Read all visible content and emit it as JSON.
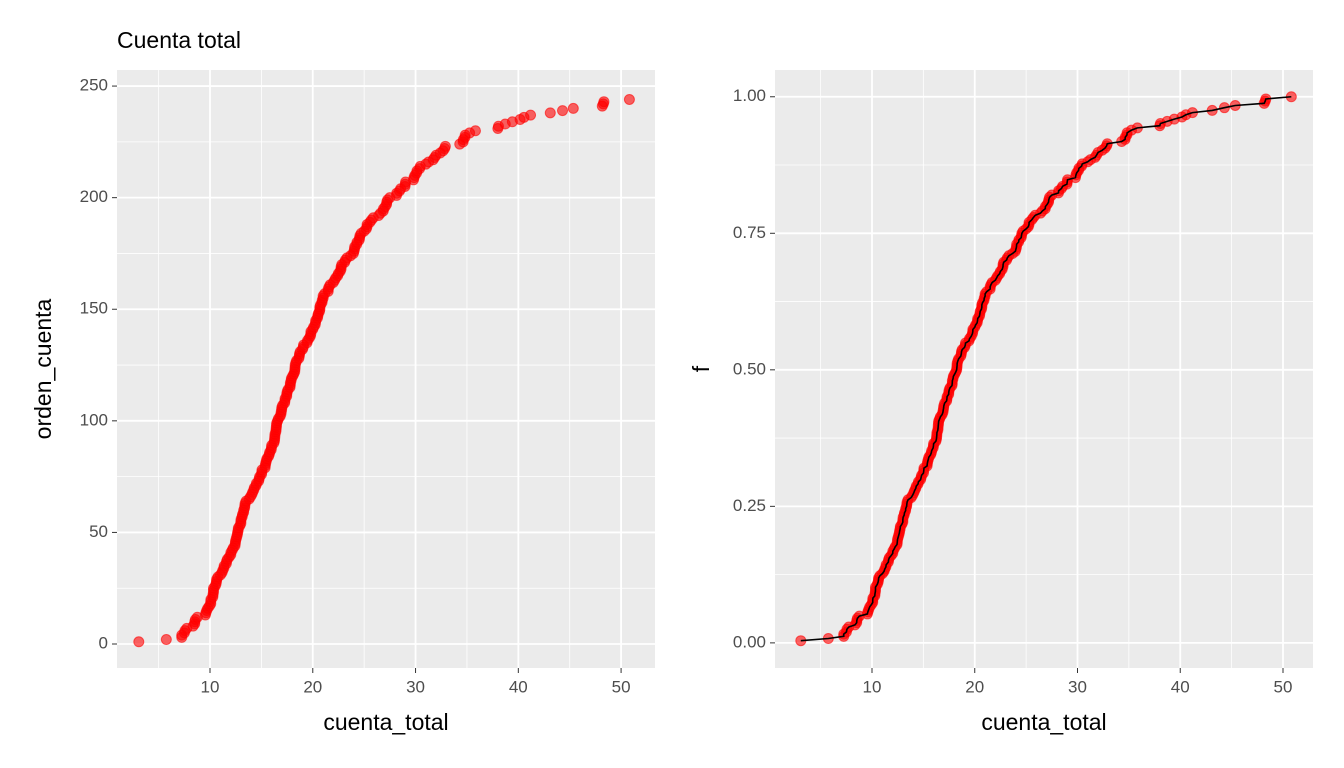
{
  "chart_data": [
    {
      "type": "scatter",
      "title": "Cuenta total",
      "x_label": "cuenta_total",
      "y_label": "orden_cuenta",
      "color": "#ff0000",
      "grid": true,
      "xlim": [
        0.95,
        53.3
      ],
      "xticks": [
        10,
        20,
        30,
        40,
        50
      ],
      "ylim": [
        -10.75,
        257.2
      ],
      "yticks": [
        0,
        50,
        100,
        150,
        200,
        250
      ],
      "x": [
        3.07,
        5.75,
        7.25,
        7.25,
        7.51,
        7.56,
        7.74,
        8.35,
        8.51,
        8.52,
        8.58,
        8.77,
        9.55,
        9.6,
        9.68,
        9.78,
        9.94,
        10.07,
        10.07,
        10.09,
        10.27,
        10.29,
        10.33,
        10.34,
        10.34,
        10.51,
        10.59,
        10.63,
        10.65,
        10.77,
        11.02,
        11.17,
        11.24,
        11.35,
        11.38,
        11.59,
        11.61,
        11.69,
        11.87,
        12.02,
        12.03,
        12.16,
        12.26,
        12.43,
        12.46,
        12.48,
        12.54,
        12.6,
        12.66,
        12.69,
        12.74,
        12.76,
        12.9,
        13,
        13,
        13.03,
        13.13,
        13.16,
        13.27,
        13.28,
        13.37,
        13.39,
        13.42,
        13.51,
        13.81,
        13.94,
        14.07,
        14.15,
        14.26,
        14.31,
        14.48,
        14.52,
        14.73,
        14.78,
        14.83,
        15.01,
        15.04,
        15.06,
        15.36,
        15.38,
        15.42,
        15.48,
        15.53,
        15.69,
        15.77,
        15.81,
        15.95,
        15.98,
        16,
        16.21,
        16.27,
        16.29,
        16.31,
        16.32,
        16.4,
        16.43,
        16.45,
        16.47,
        16.49,
        16.58,
        16.66,
        16.82,
        16.9,
        16.93,
        16.97,
        16.99,
        17.07,
        17.26,
        17.29,
        17.31,
        17.46,
        17.47,
        17.51,
        17.59,
        17.78,
        17.81,
        17.82,
        17.89,
        17.92,
        18.04,
        18.15,
        18.24,
        18.26,
        18.28,
        18.29,
        18.35,
        18.43,
        18.64,
        18.69,
        18.71,
        18.78,
        19.0,
        19.08,
        19.1,
        19.44,
        19.49,
        19.65,
        19.77,
        19.81,
        19.82,
        20.0,
        20.08,
        20.23,
        20.27,
        20.29,
        20.45,
        20.49,
        20.53,
        20.65,
        20.69,
        20.69,
        20.76,
        20.9,
        20.92,
        21.01,
        21.01,
        21.16,
        21.5,
        21.5,
        21.58,
        21.7,
        22.0,
        22.12,
        22.23,
        22.42,
        22.49,
        22.67,
        22.75,
        22.76,
        22.82,
        23.1,
        23.17,
        23.33,
        23.68,
        23.95,
        24.01,
        24.06,
        24.08,
        24.27,
        24.3,
        24.52,
        24.55,
        24.59,
        24.71,
        25,
        25.21,
        25.28,
        25.29,
        25.56,
        25.71,
        25.89,
        26.41,
        26.59,
        26.86,
        26.88,
        27.05,
        27.18,
        27.2,
        27.28,
        27.5,
        28.15,
        28.17,
        28.44,
        28.55,
        28.97,
        29.0,
        29.03,
        29.8,
        29.85,
        29.93,
        30.1,
        30.14,
        30.4,
        30.46,
        31.0,
        31.27,
        31.71,
        31.85,
        32.0,
        32.4,
        32.68,
        32.83,
        32.9,
        34.3,
        34.63,
        34.65,
        34.81,
        34.83,
        35.26,
        35.83,
        38.01,
        38.07,
        38.73,
        39.42,
        40.17,
        40.55,
        41.19,
        43.11,
        44.3,
        45.35,
        48.17,
        48.27,
        48.33,
        50.81
      ],
      "values": [
        1,
        2,
        3,
        4,
        5,
        6,
        7,
        8,
        9,
        10,
        11,
        12,
        13,
        14,
        15,
        16,
        17,
        18,
        19,
        20,
        21,
        22,
        23,
        24,
        25,
        26,
        27,
        28,
        29,
        30,
        31,
        32,
        33,
        34,
        35,
        36,
        37,
        38,
        39,
        40,
        41,
        42,
        43,
        44,
        45,
        46,
        47,
        48,
        49,
        50,
        51,
        52,
        53,
        54,
        55,
        56,
        57,
        58,
        59,
        60,
        61,
        62,
        63,
        64,
        65,
        66,
        67,
        68,
        69,
        70,
        71,
        72,
        73,
        74,
        75,
        76,
        77,
        78,
        79,
        80,
        81,
        82,
        83,
        84,
        85,
        86,
        87,
        88,
        89,
        90,
        91,
        92,
        93,
        94,
        95,
        96,
        97,
        98,
        99,
        100,
        101,
        102,
        103,
        104,
        105,
        106,
        107,
        108,
        109,
        110,
        111,
        112,
        113,
        114,
        115,
        116,
        117,
        118,
        119,
        120,
        121,
        122,
        123,
        124,
        125,
        126,
        127,
        128,
        129,
        130,
        131,
        132,
        133,
        134,
        135,
        136,
        137,
        138,
        139,
        140,
        141,
        142,
        143,
        144,
        145,
        146,
        147,
        148,
        149,
        150,
        151,
        152,
        153,
        154,
        155,
        156,
        157,
        158,
        159,
        160,
        161,
        162,
        163,
        164,
        165,
        166,
        167,
        168,
        169,
        170,
        171,
        172,
        173,
        174,
        175,
        176,
        177,
        178,
        179,
        180,
        181,
        182,
        183,
        184,
        185,
        186,
        187,
        188,
        189,
        190,
        191,
        192,
        193,
        194,
        195,
        196,
        197,
        198,
        199,
        200,
        201,
        202,
        203,
        204,
        205,
        206,
        207,
        208,
        209,
        210,
        211,
        212,
        213,
        214,
        215,
        216,
        217,
        218,
        219,
        220,
        221,
        222,
        223,
        224,
        225,
        226,
        227,
        228,
        229,
        230,
        231,
        232,
        233,
        234,
        235,
        236,
        237,
        238,
        239,
        240,
        241,
        242,
        243,
        244
      ]
    },
    {
      "type": "line",
      "x_label": "cuenta_total",
      "y_label": "f",
      "color": "#ff0000",
      "line_color": "#000000",
      "grid": true,
      "xlim": [
        0.56,
        52.92
      ],
      "xticks": [
        10,
        20,
        30,
        40,
        50
      ],
      "ylim": [
        -0.046,
        1.049
      ],
      "yticks": [
        {
          "value": 0,
          "label": "0.00"
        },
        {
          "value": 0.25,
          "label": "0.25"
        },
        {
          "value": 0.5,
          "label": "0.50"
        },
        {
          "value": 0.75,
          "label": "0.75"
        },
        {
          "value": 1,
          "label": "1.00"
        }
      ],
      "x": [
        3.07,
        5.75,
        7.25,
        7.25,
        7.51,
        7.56,
        7.74,
        8.35,
        8.51,
        8.52,
        8.58,
        8.77,
        9.55,
        9.6,
        9.68,
        9.78,
        9.94,
        10.07,
        10.07,
        10.09,
        10.27,
        10.29,
        10.33,
        10.34,
        10.34,
        10.51,
        10.59,
        10.63,
        10.65,
        10.77,
        11.02,
        11.17,
        11.24,
        11.35,
        11.38,
        11.59,
        11.61,
        11.69,
        11.87,
        12.02,
        12.03,
        12.16,
        12.26,
        12.43,
        12.46,
        12.48,
        12.54,
        12.6,
        12.66,
        12.69,
        12.74,
        12.76,
        12.9,
        13,
        13,
        13.03,
        13.13,
        13.16,
        13.27,
        13.28,
        13.37,
        13.39,
        13.42,
        13.51,
        13.81,
        13.94,
        14.07,
        14.15,
        14.26,
        14.31,
        14.48,
        14.52,
        14.73,
        14.78,
        14.83,
        15.01,
        15.04,
        15.06,
        15.36,
        15.38,
        15.42,
        15.48,
        15.53,
        15.69,
        15.77,
        15.81,
        15.95,
        15.98,
        16,
        16.21,
        16.27,
        16.29,
        16.31,
        16.32,
        16.4,
        16.43,
        16.45,
        16.47,
        16.49,
        16.58,
        16.66,
        16.82,
        16.9,
        16.93,
        16.97,
        16.99,
        17.07,
        17.26,
        17.29,
        17.31,
        17.46,
        17.47,
        17.51,
        17.59,
        17.78,
        17.81,
        17.82,
        17.89,
        17.92,
        18.04,
        18.15,
        18.24,
        18.26,
        18.28,
        18.29,
        18.35,
        18.43,
        18.64,
        18.69,
        18.71,
        18.78,
        19.0,
        19.08,
        19.1,
        19.44,
        19.49,
        19.65,
        19.77,
        19.81,
        19.82,
        20.0,
        20.08,
        20.23,
        20.27,
        20.29,
        20.45,
        20.49,
        20.53,
        20.65,
        20.69,
        20.69,
        20.76,
        20.9,
        20.92,
        21.01,
        21.01,
        21.16,
        21.5,
        21.5,
        21.58,
        21.7,
        22.0,
        22.12,
        22.23,
        22.42,
        22.49,
        22.67,
        22.75,
        22.76,
        22.82,
        23.1,
        23.17,
        23.33,
        23.68,
        23.95,
        24.01,
        24.06,
        24.08,
        24.27,
        24.3,
        24.52,
        24.55,
        24.59,
        24.71,
        25,
        25.21,
        25.28,
        25.29,
        25.56,
        25.71,
        25.89,
        26.41,
        26.59,
        26.86,
        26.88,
        27.05,
        27.18,
        27.2,
        27.28,
        27.5,
        28.15,
        28.17,
        28.44,
        28.55,
        28.97,
        29.0,
        29.03,
        29.8,
        29.85,
        29.93,
        30.1,
        30.14,
        30.4,
        30.46,
        31.0,
        31.27,
        31.71,
        31.85,
        32.0,
        32.4,
        32.68,
        32.83,
        32.9,
        34.3,
        34.63,
        34.65,
        34.81,
        34.83,
        35.26,
        35.83,
        38.01,
        38.07,
        38.73,
        39.42,
        40.17,
        40.55,
        41.19,
        43.11,
        44.3,
        45.35,
        48.17,
        48.27,
        48.33,
        50.81
      ],
      "values": [
        0.004,
        0.008,
        0.012,
        0.016,
        0.02,
        0.025,
        0.029,
        0.033,
        0.037,
        0.041,
        0.045,
        0.049,
        0.053,
        0.057,
        0.061,
        0.066,
        0.07,
        0.074,
        0.078,
        0.082,
        0.086,
        0.09,
        0.094,
        0.098,
        0.102,
        0.107,
        0.111,
        0.115,
        0.119,
        0.123,
        0.127,
        0.131,
        0.135,
        0.139,
        0.143,
        0.148,
        0.152,
        0.156,
        0.16,
        0.164,
        0.168,
        0.172,
        0.176,
        0.18,
        0.184,
        0.189,
        0.193,
        0.197,
        0.201,
        0.205,
        0.209,
        0.213,
        0.217,
        0.221,
        0.225,
        0.23,
        0.234,
        0.238,
        0.242,
        0.246,
        0.25,
        0.254,
        0.258,
        0.262,
        0.266,
        0.27,
        0.275,
        0.279,
        0.283,
        0.287,
        0.291,
        0.295,
        0.299,
        0.303,
        0.307,
        0.311,
        0.316,
        0.32,
        0.324,
        0.328,
        0.332,
        0.336,
        0.34,
        0.344,
        0.348,
        0.352,
        0.357,
        0.361,
        0.365,
        0.369,
        0.373,
        0.377,
        0.381,
        0.385,
        0.389,
        0.393,
        0.398,
        0.402,
        0.406,
        0.41,
        0.414,
        0.418,
        0.422,
        0.426,
        0.43,
        0.434,
        0.439,
        0.443,
        0.447,
        0.451,
        0.455,
        0.459,
        0.463,
        0.467,
        0.471,
        0.475,
        0.48,
        0.484,
        0.488,
        0.492,
        0.496,
        0.5,
        0.504,
        0.508,
        0.512,
        0.516,
        0.52,
        0.525,
        0.529,
        0.533,
        0.537,
        0.541,
        0.545,
        0.549,
        0.553,
        0.557,
        0.561,
        0.566,
        0.57,
        0.574,
        0.578,
        0.582,
        0.586,
        0.59,
        0.594,
        0.598,
        0.602,
        0.607,
        0.611,
        0.615,
        0.619,
        0.623,
        0.627,
        0.631,
        0.635,
        0.639,
        0.643,
        0.648,
        0.652,
        0.656,
        0.66,
        0.664,
        0.668,
        0.672,
        0.676,
        0.68,
        0.684,
        0.689,
        0.693,
        0.697,
        0.701,
        0.705,
        0.709,
        0.713,
        0.717,
        0.721,
        0.725,
        0.73,
        0.734,
        0.738,
        0.742,
        0.746,
        0.75,
        0.754,
        0.758,
        0.762,
        0.766,
        0.77,
        0.775,
        0.779,
        0.783,
        0.787,
        0.791,
        0.795,
        0.799,
        0.803,
        0.807,
        0.811,
        0.816,
        0.82,
        0.824,
        0.828,
        0.832,
        0.836,
        0.84,
        0.844,
        0.848,
        0.852,
        0.857,
        0.861,
        0.865,
        0.869,
        0.873,
        0.877,
        0.881,
        0.885,
        0.889,
        0.893,
        0.898,
        0.902,
        0.906,
        0.91,
        0.914,
        0.918,
        0.922,
        0.926,
        0.93,
        0.934,
        0.939,
        0.943,
        0.947,
        0.951,
        0.955,
        0.959,
        0.963,
        0.967,
        0.971,
        0.975,
        0.98,
        0.984,
        0.988,
        0.992,
        0.996,
        1
      ]
    }
  ]
}
